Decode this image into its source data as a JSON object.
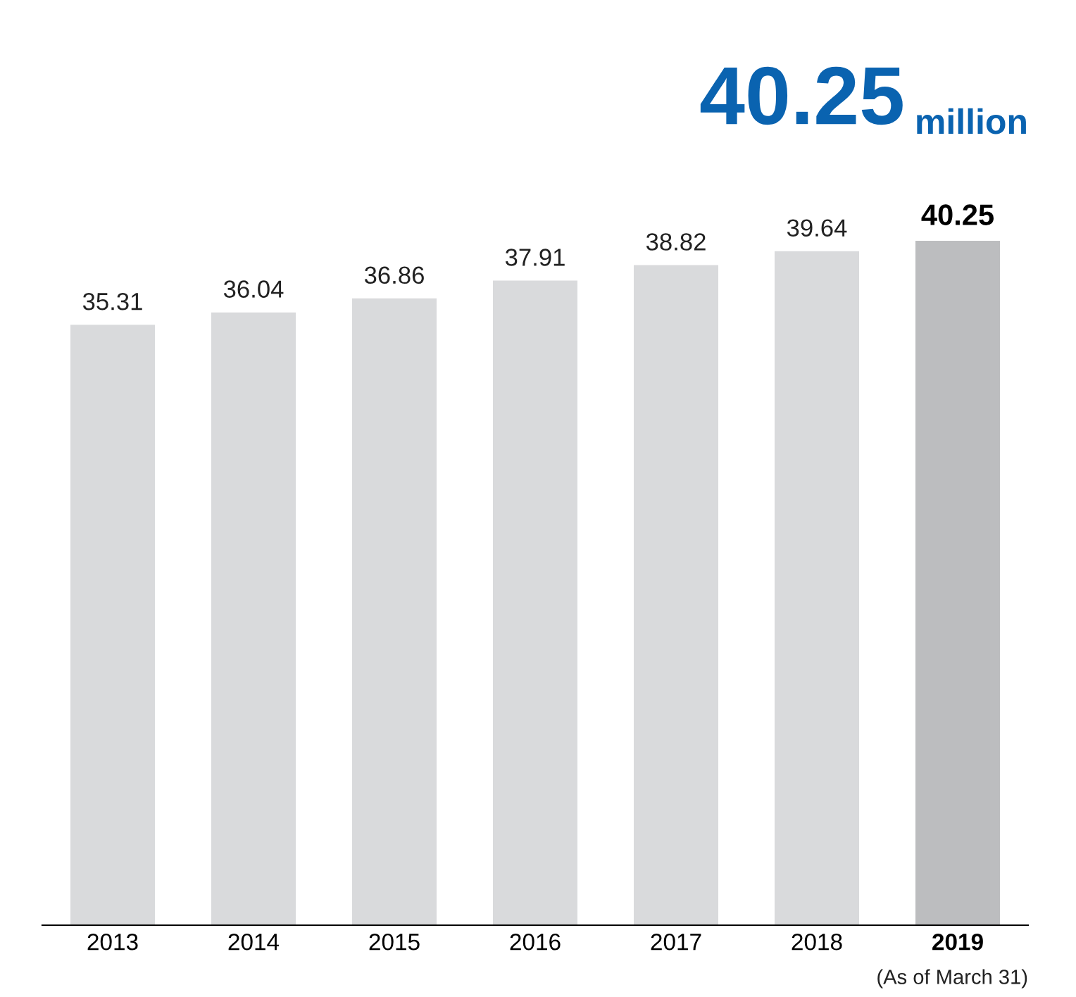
{
  "chart_data": {
    "type": "bar",
    "title": "40.25 million",
    "categories": [
      "2013",
      "2014",
      "2015",
      "2016",
      "2017",
      "2018",
      "2019"
    ],
    "values": [
      35.31,
      36.04,
      36.86,
      37.91,
      38.82,
      39.64,
      40.25
    ],
    "colors": [
      "#d9dadc",
      "#d9dadc",
      "#d9dadc",
      "#d9dadc",
      "#d9dadc",
      "#d9dadc",
      "#bcbdbf"
    ],
    "data_labels": true,
    "grid": false,
    "legend": false,
    "annotations": [
      "(As of March 31)"
    ]
  }
}
